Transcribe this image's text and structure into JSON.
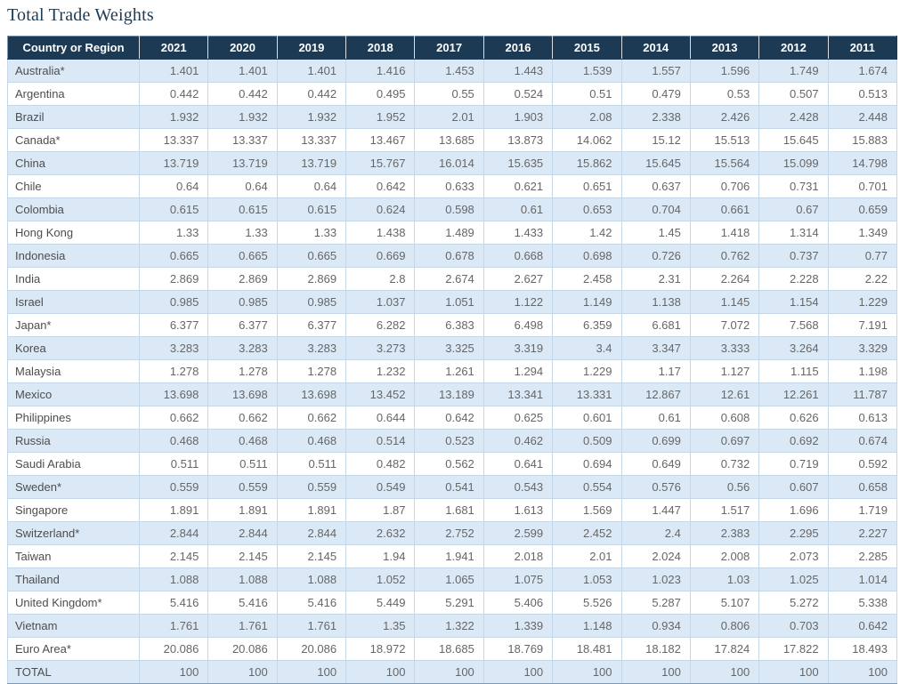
{
  "page": {
    "title": "Total Trade Weights"
  },
  "colors": {
    "header_bg": "#1d3a55",
    "header_text": "#ffffff",
    "alt_row_bg": "#dbe9f7",
    "row_bg": "#ffffff",
    "cell_border": "#c3d7e8",
    "outer_border": "#7e99b1",
    "title_text": "#1f3a54",
    "value_text": "#666666"
  },
  "chart_data": {
    "type": "table",
    "title": "Total Trade Weights",
    "columns": [
      "Country or Region",
      "2021",
      "2020",
      "2019",
      "2018",
      "2017",
      "2016",
      "2015",
      "2014",
      "2013",
      "2012",
      "2011"
    ],
    "rows": [
      [
        "Australia*",
        "1.401",
        "1.401",
        "1.401",
        "1.416",
        "1.453",
        "1.443",
        "1.539",
        "1.557",
        "1.596",
        "1.749",
        "1.674"
      ],
      [
        "Argentina",
        "0.442",
        "0.442",
        "0.442",
        "0.495",
        "0.55",
        "0.524",
        "0.51",
        "0.479",
        "0.53",
        "0.507",
        "0.513"
      ],
      [
        "Brazil",
        "1.932",
        "1.932",
        "1.932",
        "1.952",
        "2.01",
        "1.903",
        "2.08",
        "2.338",
        "2.426",
        "2.428",
        "2.448"
      ],
      [
        "Canada*",
        "13.337",
        "13.337",
        "13.337",
        "13.467",
        "13.685",
        "13.873",
        "14.062",
        "15.12",
        "15.513",
        "15.645",
        "15.883"
      ],
      [
        "China",
        "13.719",
        "13.719",
        "13.719",
        "15.767",
        "16.014",
        "15.635",
        "15.862",
        "15.645",
        "15.564",
        "15.099",
        "14.798"
      ],
      [
        "Chile",
        "0.64",
        "0.64",
        "0.64",
        "0.642",
        "0.633",
        "0.621",
        "0.651",
        "0.637",
        "0.706",
        "0.731",
        "0.701"
      ],
      [
        "Colombia",
        "0.615",
        "0.615",
        "0.615",
        "0.624",
        "0.598",
        "0.61",
        "0.653",
        "0.704",
        "0.661",
        "0.67",
        "0.659"
      ],
      [
        "Hong Kong",
        "1.33",
        "1.33",
        "1.33",
        "1.438",
        "1.489",
        "1.433",
        "1.42",
        "1.45",
        "1.418",
        "1.314",
        "1.349"
      ],
      [
        "Indonesia",
        "0.665",
        "0.665",
        "0.665",
        "0.669",
        "0.678",
        "0.668",
        "0.698",
        "0.726",
        "0.762",
        "0.737",
        "0.77"
      ],
      [
        "India",
        "2.869",
        "2.869",
        "2.869",
        "2.8",
        "2.674",
        "2.627",
        "2.458",
        "2.31",
        "2.264",
        "2.228",
        "2.22"
      ],
      [
        "Israel",
        "0.985",
        "0.985",
        "0.985",
        "1.037",
        "1.051",
        "1.122",
        "1.149",
        "1.138",
        "1.145",
        "1.154",
        "1.229"
      ],
      [
        "Japan*",
        "6.377",
        "6.377",
        "6.377",
        "6.282",
        "6.383",
        "6.498",
        "6.359",
        "6.681",
        "7.072",
        "7.568",
        "7.191"
      ],
      [
        "Korea",
        "3.283",
        "3.283",
        "3.283",
        "3.273",
        "3.325",
        "3.319",
        "3.4",
        "3.347",
        "3.333",
        "3.264",
        "3.329"
      ],
      [
        "Malaysia",
        "1.278",
        "1.278",
        "1.278",
        "1.232",
        "1.261",
        "1.294",
        "1.229",
        "1.17",
        "1.127",
        "1.115",
        "1.198"
      ],
      [
        "Mexico",
        "13.698",
        "13.698",
        "13.698",
        "13.452",
        "13.189",
        "13.341",
        "13.331",
        "12.867",
        "12.61",
        "12.261",
        "11.787"
      ],
      [
        "Philippines",
        "0.662",
        "0.662",
        "0.662",
        "0.644",
        "0.642",
        "0.625",
        "0.601",
        "0.61",
        "0.608",
        "0.626",
        "0.613"
      ],
      [
        "Russia",
        "0.468",
        "0.468",
        "0.468",
        "0.514",
        "0.523",
        "0.462",
        "0.509",
        "0.699",
        "0.697",
        "0.692",
        "0.674"
      ],
      [
        "Saudi Arabia",
        "0.511",
        "0.511",
        "0.511",
        "0.482",
        "0.562",
        "0.641",
        "0.694",
        "0.649",
        "0.732",
        "0.719",
        "0.592"
      ],
      [
        "Sweden*",
        "0.559",
        "0.559",
        "0.559",
        "0.549",
        "0.541",
        "0.543",
        "0.554",
        "0.576",
        "0.56",
        "0.607",
        "0.658"
      ],
      [
        "Singapore",
        "1.891",
        "1.891",
        "1.891",
        "1.87",
        "1.681",
        "1.613",
        "1.569",
        "1.447",
        "1.517",
        "1.696",
        "1.719"
      ],
      [
        "Switzerland*",
        "2.844",
        "2.844",
        "2.844",
        "2.632",
        "2.752",
        "2.599",
        "2.452",
        "2.4",
        "2.383",
        "2.295",
        "2.227"
      ],
      [
        "Taiwan",
        "2.145",
        "2.145",
        "2.145",
        "1.94",
        "1.941",
        "2.018",
        "2.01",
        "2.024",
        "2.008",
        "2.073",
        "2.285"
      ],
      [
        "Thailand",
        "1.088",
        "1.088",
        "1.088",
        "1.052",
        "1.065",
        "1.075",
        "1.053",
        "1.023",
        "1.03",
        "1.025",
        "1.014"
      ],
      [
        "United Kingdom*",
        "5.416",
        "5.416",
        "5.416",
        "5.449",
        "5.291",
        "5.406",
        "5.526",
        "5.287",
        "5.107",
        "5.272",
        "5.338"
      ],
      [
        "Vietnam",
        "1.761",
        "1.761",
        "1.761",
        "1.35",
        "1.322",
        "1.339",
        "1.148",
        "0.934",
        "0.806",
        "0.703",
        "0.642"
      ],
      [
        "Euro Area*",
        "20.086",
        "20.086",
        "20.086",
        "18.972",
        "18.685",
        "18.769",
        "18.481",
        "18.182",
        "17.824",
        "17.822",
        "18.493"
      ],
      [
        "TOTAL",
        "100",
        "100",
        "100",
        "100",
        "100",
        "100",
        "100",
        "100",
        "100",
        "100",
        "100"
      ]
    ]
  }
}
